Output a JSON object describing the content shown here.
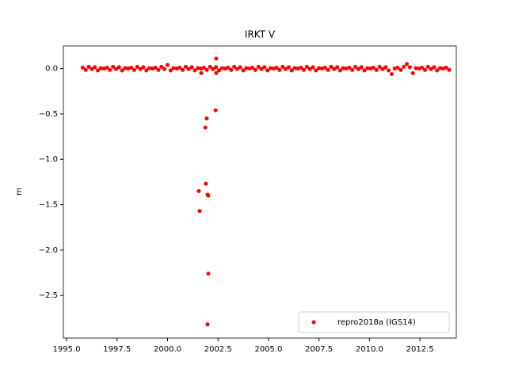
{
  "chart_data": {
    "type": "scatter",
    "title": "IRKT V",
    "ylabel": "m",
    "xlim": [
      1994.84,
      2014.3
    ],
    "ylim": [
      -2.97,
      0.25
    ],
    "xticks": [
      {
        "value": 1995,
        "label": "1995.0"
      },
      {
        "value": 1997.5,
        "label": "1997.5"
      },
      {
        "value": 2000,
        "label": "2000.0"
      },
      {
        "value": 2002.5,
        "label": "2002.5"
      },
      {
        "value": 2005,
        "label": "2005.0"
      },
      {
        "value": 2007.5,
        "label": "2007.5"
      },
      {
        "value": 2010,
        "label": "2010.0"
      },
      {
        "value": 2012.5,
        "label": "2012.5"
      }
    ],
    "yticks": [
      {
        "value": 0,
        "label": "0.0"
      },
      {
        "value": -0.5,
        "label": "−0.5"
      },
      {
        "value": -1,
        "label": "−1.0"
      },
      {
        "value": -1.5,
        "label": "−1.5"
      },
      {
        "value": -2,
        "label": "−2.0"
      },
      {
        "value": -2.5,
        "label": "−2.5"
      }
    ],
    "legend": "lower right",
    "series": [
      {
        "name": "repro2018a (IGS14)",
        "color": "#ff0000",
        "x": [
          1995.8,
          1995.95,
          1996.1,
          1996.25,
          1996.4,
          1996.55,
          1996.7,
          1996.85,
          1997.0,
          1997.15,
          1997.3,
          1997.45,
          1997.6,
          1997.75,
          1997.9,
          1998.05,
          1998.2,
          1998.35,
          1998.5,
          1998.65,
          1998.8,
          1998.95,
          1999.1,
          1999.25,
          1999.4,
          1999.55,
          1999.7,
          1999.85,
          2000.0,
          2000.15,
          2000.3,
          2000.45,
          2000.6,
          2000.75,
          2000.9,
          2001.05,
          2001.2,
          2001.35,
          2001.5,
          2001.65,
          2001.8,
          2001.95,
          2002.1,
          2002.25,
          2002.4,
          2002.55,
          2002.7,
          2002.85,
          2003.0,
          2003.15,
          2003.3,
          2003.45,
          2003.6,
          2003.75,
          2003.9,
          2004.05,
          2004.2,
          2004.35,
          2004.5,
          2004.65,
          2004.8,
          2004.95,
          2005.1,
          2005.25,
          2005.4,
          2005.55,
          2005.7,
          2005.85,
          2006.0,
          2006.15,
          2006.3,
          2006.45,
          2006.6,
          2006.75,
          2006.9,
          2007.05,
          2007.2,
          2007.35,
          2007.5,
          2007.65,
          2007.8,
          2007.95,
          2008.1,
          2008.25,
          2008.4,
          2008.55,
          2008.7,
          2008.85,
          2009.0,
          2009.15,
          2009.3,
          2009.45,
          2009.6,
          2009.75,
          2009.9,
          2010.05,
          2010.2,
          2010.35,
          2010.5,
          2010.65,
          2010.8,
          2010.95,
          2011.1,
          2011.25,
          2011.4,
          2011.55,
          2011.7,
          2011.85,
          2012.0,
          2012.15,
          2012.3,
          2012.45,
          2012.6,
          2012.75,
          2012.9,
          2013.05,
          2013.2,
          2013.35,
          2013.5,
          2013.65,
          2013.8,
          2013.95,
          2001.55,
          2001.59,
          2001.67,
          2001.87,
          2001.9,
          2001.94,
          2001.98,
          2001.98,
          2002.02,
          2002.02,
          2002.38,
          2002.41,
          2002.41
        ],
        "values": [
          0.01,
          -0.015,
          0.02,
          -0.005,
          0.015,
          -0.02,
          0.005,
          0.0,
          0.01,
          -0.015,
          0.02,
          -0.005,
          0.015,
          -0.02,
          0.005,
          0.0,
          0.01,
          -0.015,
          0.02,
          -0.005,
          0.015,
          -0.02,
          0.005,
          0.0,
          0.01,
          -0.015,
          0.02,
          -0.005,
          0.04,
          -0.02,
          0.005,
          0.0,
          0.01,
          -0.015,
          0.02,
          -0.005,
          0.015,
          -0.02,
          0.005,
          0.0,
          0.01,
          -0.015,
          0.02,
          -0.005,
          0.015,
          -0.02,
          0.005,
          0.0,
          0.01,
          -0.015,
          0.02,
          -0.005,
          0.015,
          -0.02,
          0.005,
          0.0,
          0.01,
          -0.015,
          0.02,
          -0.005,
          0.015,
          -0.02,
          0.005,
          0.0,
          0.01,
          -0.015,
          0.02,
          -0.005,
          0.015,
          -0.02,
          0.005,
          0.0,
          0.01,
          -0.015,
          0.02,
          -0.005,
          0.015,
          -0.02,
          0.005,
          0.0,
          0.01,
          -0.015,
          0.02,
          -0.005,
          0.015,
          -0.02,
          0.005,
          0.0,
          0.01,
          -0.015,
          0.02,
          -0.005,
          0.015,
          -0.02,
          0.005,
          0.0,
          0.01,
          -0.015,
          0.02,
          -0.005,
          0.015,
          -0.02,
          -0.06,
          0.0,
          0.01,
          -0.015,
          0.02,
          0.05,
          0.015,
          -0.05,
          0.005,
          0.0,
          0.01,
          -0.015,
          0.02,
          -0.005,
          0.015,
          -0.02,
          0.005,
          0.0,
          0.01,
          -0.015,
          -1.35,
          -1.57,
          -0.05,
          -0.65,
          -1.27,
          -0.55,
          -1.39,
          -2.82,
          -1.4,
          -2.26,
          -0.46,
          0.11,
          -0.05
        ]
      }
    ]
  }
}
